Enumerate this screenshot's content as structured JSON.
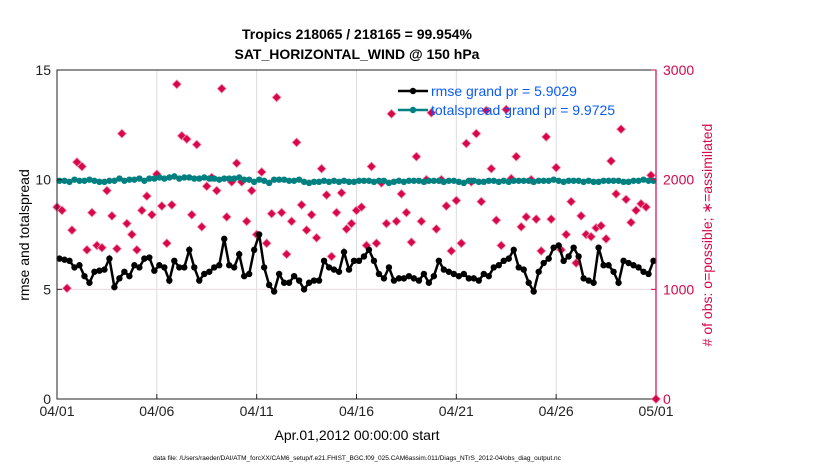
{
  "chart_data": {
    "type": "line",
    "title": "Tropics 218065 / 218165 = 99.954%",
    "subtitle": "SAT_HORIZONTAL_WIND @ 150 hPa",
    "xlabel": "Apr.01,2012 00:00:00 start",
    "ylabel": "rmse and totalspread",
    "y2label": "# of obs: o=possible; ∗=assimilated",
    "xlim_days": [
      0,
      30
    ],
    "x_tick_labels": [
      "04/01",
      "04/06",
      "04/11",
      "04/16",
      "04/21",
      "04/26",
      "05/01"
    ],
    "x_tick_days": [
      0,
      5,
      10,
      15,
      20,
      25,
      30
    ],
    "ylim": [
      0,
      15
    ],
    "y_ticks": [
      0,
      5,
      10,
      15
    ],
    "y2lim": [
      0,
      3000
    ],
    "y2_ticks": [
      0,
      1000,
      2000,
      3000
    ],
    "grid": "vertical at x ticks; horizontal at 5 and 10",
    "legend_position": "top-right",
    "footer": "data file: /Users/raeder/DAI/ATM_forcXX/CAM6_setup/f.e21.FHIST_BGC.f09_025.CAM6assim.011/Diags_NTrS_2012-04/obs_diag_output.nc",
    "time_step_days": 0.25,
    "series": [
      {
        "name": "rmse grand pr = 5.9029",
        "axis": "left",
        "color": "#000000",
        "values": [
          6.4,
          6.35,
          6.3,
          6.0,
          6.1,
          5.6,
          5.3,
          5.8,
          5.85,
          5.9,
          6.4,
          5.1,
          5.5,
          5.8,
          5.6,
          6.1,
          6.0,
          6.4,
          6.45,
          5.85,
          6.1,
          6.0,
          5.4,
          6.3,
          6.0,
          6.0,
          6.8,
          6.0,
          5.4,
          5.7,
          5.8,
          6.0,
          6.1,
          7.3,
          6.1,
          6.0,
          6.6,
          5.6,
          5.7,
          6.8,
          7.5,
          6.0,
          5.2,
          4.9,
          5.7,
          5.3,
          5.3,
          5.6,
          5.4,
          5.0,
          5.3,
          5.4,
          5.4,
          6.3,
          6.0,
          5.9,
          5.8,
          6.7,
          5.9,
          6.3,
          6.3,
          6.5,
          6.8,
          6.3,
          5.7,
          5.5,
          6.0,
          5.4,
          5.5,
          5.5,
          5.6,
          5.5,
          5.4,
          5.7,
          5.3,
          5.6,
          6.3,
          5.9,
          5.8,
          5.7,
          5.6,
          5.7,
          5.5,
          5.5,
          5.4,
          5.7,
          5.6,
          6.0,
          6.1,
          6.3,
          6.4,
          6.8,
          6.0,
          5.9,
          5.3,
          4.9,
          5.8,
          6.2,
          6.4,
          6.9,
          7.0,
          6.3,
          6.5,
          6.9,
          6.5,
          5.5,
          5.4,
          5.3,
          6.9,
          6.1,
          6.1,
          5.8,
          5.3,
          6.3,
          6.2,
          6.1,
          6.0,
          5.8,
          5.7,
          6.3
        ]
      },
      {
        "name": "totalspread grand pr = 9.9725",
        "axis": "left",
        "color": "#008080",
        "values": [
          9.95,
          9.95,
          9.9,
          10.0,
          9.95,
          9.95,
          10.0,
          9.95,
          9.9,
          9.9,
          9.95,
          9.95,
          10.05,
          9.95,
          10.0,
          10.0,
          10.05,
          9.95,
          10.05,
          10.05,
          10.1,
          10.05,
          10.1,
          10.15,
          10.05,
          10.1,
          10.1,
          10.05,
          10.05,
          10.1,
          10.05,
          10.05,
          10.0,
          10.05,
          10.05,
          10.05,
          10.1,
          10.0,
          10.0,
          9.9,
          10.0,
          9.95,
          9.85,
          10.0,
          10.0,
          10.0,
          9.95,
          9.95,
          10.0,
          9.9,
          9.85,
          9.9,
          9.9,
          9.95,
          9.9,
          9.95,
          9.9,
          9.95,
          9.9,
          9.9,
          9.95,
          9.95,
          9.95,
          9.9,
          9.95,
          9.95,
          9.85,
          9.9,
          9.95,
          9.9,
          9.95,
          9.95,
          9.95,
          9.9,
          9.95,
          9.95,
          9.95,
          9.9,
          9.95,
          9.95,
          9.9,
          9.85,
          9.95,
          9.95,
          9.9,
          9.9,
          9.95,
          9.95,
          9.9,
          9.95,
          9.9,
          9.95,
          9.95,
          9.95,
          9.95,
          9.9,
          9.95,
          9.95,
          9.95,
          10.0,
          9.95,
          9.9,
          9.95,
          9.95,
          9.95,
          9.9,
          9.95,
          9.9,
          9.9,
          9.95,
          9.95,
          9.95,
          9.95,
          9.9,
          9.9,
          9.95,
          9.95,
          10.0,
          9.95,
          9.95
        ]
      },
      {
        "name": "obs",
        "axis": "right",
        "color": "#D6084A",
        "values": [
          1750,
          1720,
          1010,
          1540,
          2160,
          2120,
          1360,
          1700,
          1400,
          1380,
          1900,
          1670,
          1370,
          2420,
          1600,
          1500,
          1360,
          1720,
          1850,
          1680,
          2050,
          1760,
          1420,
          1770,
          2870,
          2400,
          2370,
          1680,
          2320,
          1570,
          1940,
          2020,
          1900,
          2830,
          1660,
          1980,
          2150,
          1980,
          1620,
          1900,
          1500,
          2070,
          1420,
          1690,
          2750,
          1700,
          1320,
          1620,
          2340,
          1770,
          1540,
          1680,
          1470,
          2100,
          1860,
          1300,
          1700,
          1880,
          1550,
          1600,
          1720,
          1750,
          1400,
          2120,
          1420,
          1970,
          1600,
          2600,
          1620,
          1870,
          1700,
          1430,
          2210,
          1620,
          2000,
          2610,
          1550,
          2000,
          1760,
          1350,
          1810,
          1420,
          2330,
          1980,
          2420,
          1800,
          2630,
          2100,
          1630,
          1400,
          2640,
          2010,
          2210,
          1570,
          1660,
          2000,
          1640,
          1350,
          2390,
          1640,
          2110,
          1360,
          1500,
          1800,
          1240,
          1670,
          1500,
          1480,
          1560,
          1580,
          1460,
          2170,
          1870,
          2460,
          1820,
          1610,
          1720,
          1780,
          1750,
          2040,
          0
        ]
      }
    ]
  }
}
